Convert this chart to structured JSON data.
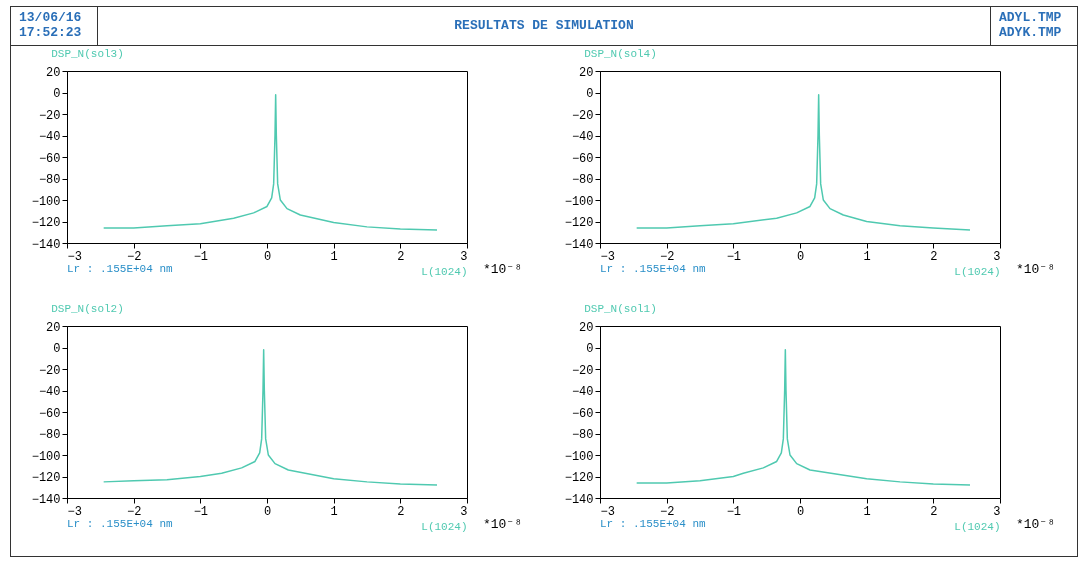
{
  "chart_data": [
    {
      "type": "other",
      "title": "RESULTATS DE SIMULATION",
      "annotations": [
        "13/06/16",
        "17:52:23",
        "ADYL.TMP",
        "ADYK.TMP"
      ]
    },
    {
      "type": "line",
      "title": "DSP_N(sol3)",
      "xlabel": "L(1024)",
      "annotations": [
        "Lr : .155E+04 nm",
        "*10⁻⁸"
      ],
      "xlim": [
        -3,
        3
      ],
      "xticks": [
        -3,
        -2,
        -1,
        0,
        1,
        2,
        3
      ],
      "ylim": [
        -140,
        20
      ],
      "yticks": [
        -140,
        -120,
        -100,
        -80,
        -60,
        -40,
        -20,
        0,
        20
      ],
      "grid": false,
      "series": [
        {
          "color": "#4fc9b0",
          "x": [
            -2.45,
            -2,
            -1.5,
            -1,
            -0.5,
            -0.2,
            0,
            0.07,
            0.1,
            0.12,
            0.13,
            0.14,
            0.16,
            0.2,
            0.3,
            0.5,
            1,
            1.5,
            2,
            2.55
          ],
          "values": [
            -126,
            -126,
            -124,
            -122,
            -117,
            -112,
            -106,
            -98,
            -85,
            -40,
            -2,
            -40,
            -85,
            -100,
            -108,
            -114,
            -121,
            -125,
            -127,
            -128
          ]
        }
      ]
    },
    {
      "type": "line",
      "title": "DSP_N(sol4)",
      "xlabel": "L(1024)",
      "annotations": [
        "Lr : .155E+04 nm",
        "*10⁻⁸"
      ],
      "xlim": [
        -3,
        3
      ],
      "xticks": [
        -3,
        -2,
        -1,
        0,
        1,
        2,
        3
      ],
      "ylim": [
        -140,
        20
      ],
      "yticks": [
        -140,
        -120,
        -100,
        -80,
        -60,
        -40,
        -20,
        0,
        20
      ],
      "grid": false,
      "series": [
        {
          "color": "#4fc9b0",
          "x": [
            -2.45,
            -2,
            -1.5,
            -1,
            -0.35,
            -0.05,
            0.15,
            0.22,
            0.25,
            0.27,
            0.28,
            0.29,
            0.31,
            0.35,
            0.45,
            0.65,
            1,
            1.5,
            2,
            2.55
          ],
          "values": [
            -126,
            -126,
            -124,
            -122,
            -117,
            -112,
            -106,
            -98,
            -85,
            -40,
            -2,
            -40,
            -85,
            -100,
            -108,
            -114,
            -120,
            -124,
            -126,
            -128
          ]
        }
      ]
    },
    {
      "type": "line",
      "title": "DSP_N(sol2)",
      "xlabel": "L(1024)",
      "annotations": [
        "Lr : .155E+04 nm",
        "*10⁻⁸"
      ],
      "xlim": [
        -3,
        3
      ],
      "xticks": [
        -3,
        -2,
        -1,
        0,
        1,
        2,
        3
      ],
      "ylim": [
        -140,
        20
      ],
      "yticks": [
        -140,
        -120,
        -100,
        -80,
        -60,
        -40,
        -20,
        0,
        20
      ],
      "grid": false,
      "series": [
        {
          "color": "#4fc9b0",
          "x": [
            -2.45,
            -2,
            -1.5,
            -1,
            -0.68,
            -0.38,
            -0.18,
            -0.11,
            -0.08,
            -0.06,
            -0.05,
            -0.04,
            -0.02,
            0.02,
            0.12,
            0.32,
            1,
            1.5,
            2,
            2.55
          ],
          "values": [
            -125,
            -124,
            -123,
            -120,
            -117,
            -112,
            -106,
            -98,
            -85,
            -40,
            -2,
            -40,
            -85,
            -100,
            -108,
            -114,
            -122,
            -125,
            -127,
            -128
          ]
        }
      ]
    },
    {
      "type": "line",
      "title": "DSP_N(sol1)",
      "xlabel": "L(1024)",
      "annotations": [
        "Lr : .155E+04 nm",
        "*10⁻⁸"
      ],
      "xlim": [
        -3,
        3
      ],
      "xticks": [
        -3,
        -2,
        -1,
        0,
        1,
        2,
        3
      ],
      "ylim": [
        -140,
        20
      ],
      "yticks": [
        -140,
        -120,
        -100,
        -80,
        -60,
        -40,
        -20,
        0,
        20
      ],
      "grid": false,
      "series": [
        {
          "color": "#4fc9b0",
          "x": [
            -2.45,
            -2,
            -1.5,
            -1,
            -0.85,
            -0.55,
            -0.35,
            -0.28,
            -0.25,
            -0.23,
            -0.22,
            -0.21,
            -0.19,
            -0.15,
            -0.05,
            0.15,
            1,
            1.5,
            2,
            2.55
          ],
          "values": [
            -126,
            -126,
            -124,
            -120,
            -117,
            -112,
            -106,
            -98,
            -85,
            -40,
            -2,
            -40,
            -85,
            -100,
            -108,
            -114,
            -122,
            -125,
            -127,
            -128
          ]
        }
      ]
    }
  ]
}
